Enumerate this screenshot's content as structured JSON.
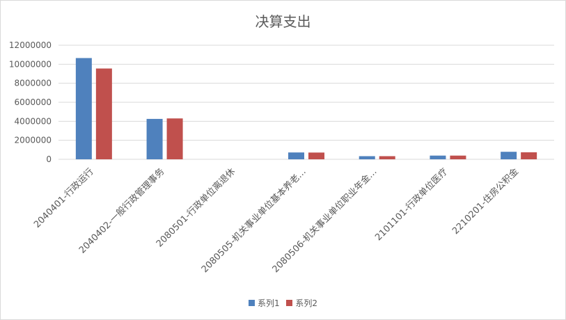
{
  "chart_data": {
    "type": "bar",
    "title": "决算支出",
    "xlabel": "",
    "ylabel": "",
    "ylim": [
      0,
      12000000
    ],
    "yticks": [
      "0",
      "2000000",
      "4000000",
      "6000000",
      "8000000",
      "10000000",
      "12000000"
    ],
    "ytick_values": [
      0,
      2000000,
      4000000,
      6000000,
      8000000,
      10000000,
      12000000
    ],
    "grid": true,
    "legend_position": "bottom",
    "categories": [
      "2040401-行政运行",
      "2040402-一般行政管理事务",
      "2080501-行政单位离退休",
      "2080505-机关事业单位基本养老…",
      "2080506-机关事业单位职业年金…",
      "2101101-行政单位医疗",
      "2210201-住房公积金"
    ],
    "series": [
      {
        "name": "系列1",
        "color": "#4f81bd",
        "values": [
          10650000,
          4250000,
          0,
          720000,
          330000,
          390000,
          790000
        ]
      },
      {
        "name": "系列2",
        "color": "#c0504d",
        "values": [
          9550000,
          4300000,
          0,
          710000,
          330000,
          390000,
          740000
        ]
      }
    ]
  }
}
